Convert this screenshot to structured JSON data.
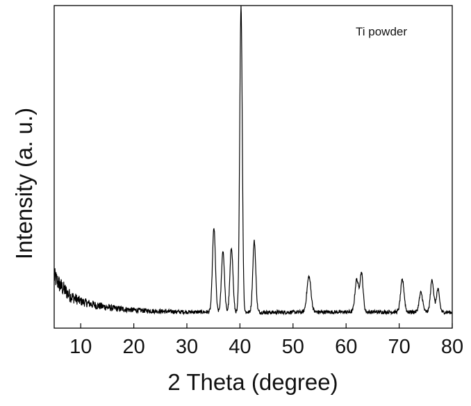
{
  "chart_data": {
    "type": "line",
    "legend_text": "Ti powder",
    "xlabel": "2 Theta (degree)",
    "ylabel": "Intensity (a. u.)",
    "xlim": [
      5,
      80
    ],
    "ylim": [
      0,
      1
    ],
    "x_ticks": [
      10,
      20,
      30,
      40,
      50,
      60,
      70,
      80
    ],
    "y_ticks_shown": false,
    "grid": false,
    "legend_position": "top-right",
    "line_color": "#000000",
    "series": [
      {
        "baseline": [
          [
            5,
            0.16
          ],
          [
            6,
            0.135
          ],
          [
            8,
            0.1
          ],
          [
            10,
            0.083
          ],
          [
            13,
            0.07
          ],
          [
            16,
            0.062
          ],
          [
            20,
            0.056
          ],
          [
            25,
            0.052
          ],
          [
            30,
            0.05
          ],
          [
            35,
            0.05
          ],
          [
            45,
            0.049
          ],
          [
            55,
            0.05
          ],
          [
            65,
            0.05
          ],
          [
            75,
            0.05
          ],
          [
            80,
            0.049
          ]
        ],
        "noise_amplitude": [
          [
            5,
            0.03
          ],
          [
            10,
            0.014
          ],
          [
            20,
            0.008
          ],
          [
            30,
            0.006
          ],
          [
            80,
            0.006
          ]
        ],
        "peaks": [
          {
            "x": 35.1,
            "height": 0.26,
            "width": 0.28
          },
          {
            "x": 36.8,
            "height": 0.19,
            "width": 0.28
          },
          {
            "x": 38.4,
            "height": 0.2,
            "width": 0.28
          },
          {
            "x": 40.2,
            "height": 0.95,
            "width": 0.24
          },
          {
            "x": 42.7,
            "height": 0.22,
            "width": 0.28
          },
          {
            "x": 53.0,
            "height": 0.11,
            "width": 0.38
          },
          {
            "x": 62.0,
            "height": 0.1,
            "width": 0.33
          },
          {
            "x": 62.9,
            "height": 0.12,
            "width": 0.3
          },
          {
            "x": 70.6,
            "height": 0.1,
            "width": 0.33
          },
          {
            "x": 74.1,
            "height": 0.06,
            "width": 0.33
          },
          {
            "x": 76.2,
            "height": 0.1,
            "width": 0.3
          },
          {
            "x": 77.3,
            "height": 0.07,
            "width": 0.3
          }
        ]
      }
    ]
  }
}
